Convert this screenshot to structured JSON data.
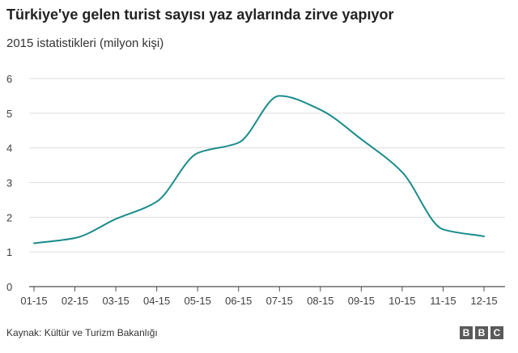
{
  "chart_data": {
    "type": "line",
    "title": "Türkiye'ye gelen turist sayısı yaz aylarında zirve yapıyor",
    "subtitle": "2015 istatistikleri (milyon kişi)",
    "xlabel": "",
    "ylabel": "",
    "categories": [
      "01-15",
      "02-15",
      "03-15",
      "04-15",
      "05-15",
      "06-15",
      "07-15",
      "08-15",
      "09-15",
      "10-15",
      "11-15",
      "12-15"
    ],
    "series": [
      {
        "values": [
          1.25,
          1.4,
          1.95,
          2.45,
          3.85,
          4.15,
          5.5,
          5.1,
          4.25,
          3.3,
          1.65,
          1.45
        ]
      }
    ],
    "ylim": [
      0,
      6
    ],
    "yticks": [
      0,
      1,
      2,
      3,
      4,
      5,
      6
    ],
    "grid": true,
    "line_color": "#1a8b8b"
  },
  "footer": {
    "source": "Kaynak: Kültür ve Turizm Bakanlığı",
    "logo": [
      "B",
      "B",
      "C"
    ]
  }
}
